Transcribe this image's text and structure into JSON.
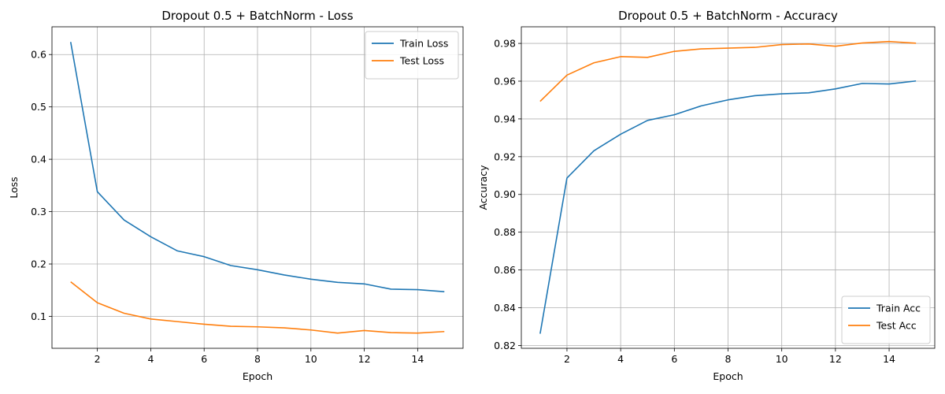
{
  "chart_data": [
    {
      "type": "line",
      "title": "Dropout 0.5 + BatchNorm - Loss",
      "xlabel": "Epoch",
      "ylabel": "Loss",
      "x": [
        1,
        2,
        3,
        4,
        5,
        6,
        7,
        8,
        9,
        10,
        11,
        12,
        13,
        14,
        15
      ],
      "xticks": [
        2,
        4,
        6,
        8,
        10,
        12,
        14
      ],
      "xtick_labels": [
        "2",
        "4",
        "6",
        "8",
        "10",
        "12",
        "14"
      ],
      "yticks": [
        0.1,
        0.2,
        0.3,
        0.4,
        0.5,
        0.6
      ],
      "ytick_labels": [
        "0.1",
        "0.2",
        "0.3",
        "0.4",
        "0.5",
        "0.6"
      ],
      "xlim": [
        0.3,
        15.7
      ],
      "ylim": [
        0.039,
        0.653
      ],
      "grid": true,
      "legend_position": "top-right",
      "series": [
        {
          "name": "Train Loss",
          "color": "#1f77b4",
          "values": [
            0.624,
            0.338,
            0.284,
            0.252,
            0.225,
            0.214,
            0.197,
            0.189,
            0.179,
            0.171,
            0.165,
            0.162,
            0.152,
            0.151,
            0.147
          ]
        },
        {
          "name": "Test Loss",
          "color": "#ff7f0e",
          "values": [
            0.166,
            0.126,
            0.106,
            0.095,
            0.09,
            0.085,
            0.081,
            0.08,
            0.078,
            0.074,
            0.068,
            0.073,
            0.069,
            0.068,
            0.071
          ]
        }
      ]
    },
    {
      "type": "line",
      "title": "Dropout 0.5 + BatchNorm - Accuracy",
      "xlabel": "Epoch",
      "ylabel": "Accuracy",
      "x": [
        1,
        2,
        3,
        4,
        5,
        6,
        7,
        8,
        9,
        10,
        11,
        12,
        13,
        14,
        15
      ],
      "xticks": [
        2,
        4,
        6,
        8,
        10,
        12,
        14
      ],
      "xtick_labels": [
        "2",
        "4",
        "6",
        "8",
        "10",
        "12",
        "14"
      ],
      "yticks": [
        0.82,
        0.84,
        0.86,
        0.88,
        0.9,
        0.92,
        0.94,
        0.96,
        0.98
      ],
      "ytick_labels": [
        "0.82",
        "0.84",
        "0.86",
        "0.88",
        "0.90",
        "0.92",
        "0.94",
        "0.96",
        "0.98"
      ],
      "xlim": [
        0.3,
        15.7
      ],
      "ylim": [
        0.8185,
        0.9888
      ],
      "grid": true,
      "legend_position": "bottom-right",
      "series": [
        {
          "name": "Train Acc",
          "color": "#1f77b4",
          "values": [
            0.8262,
            0.9087,
            0.9231,
            0.9319,
            0.9392,
            0.9422,
            0.9469,
            0.9501,
            0.9523,
            0.9533,
            0.9538,
            0.9559,
            0.9588,
            0.9585,
            0.9601
          ]
        },
        {
          "name": "Test Acc",
          "color": "#ff7f0e",
          "values": [
            0.9493,
            0.9632,
            0.9697,
            0.973,
            0.9726,
            0.9758,
            0.9771,
            0.9775,
            0.9779,
            0.9794,
            0.9797,
            0.9785,
            0.9802,
            0.981,
            0.9801
          ]
        }
      ]
    }
  ]
}
